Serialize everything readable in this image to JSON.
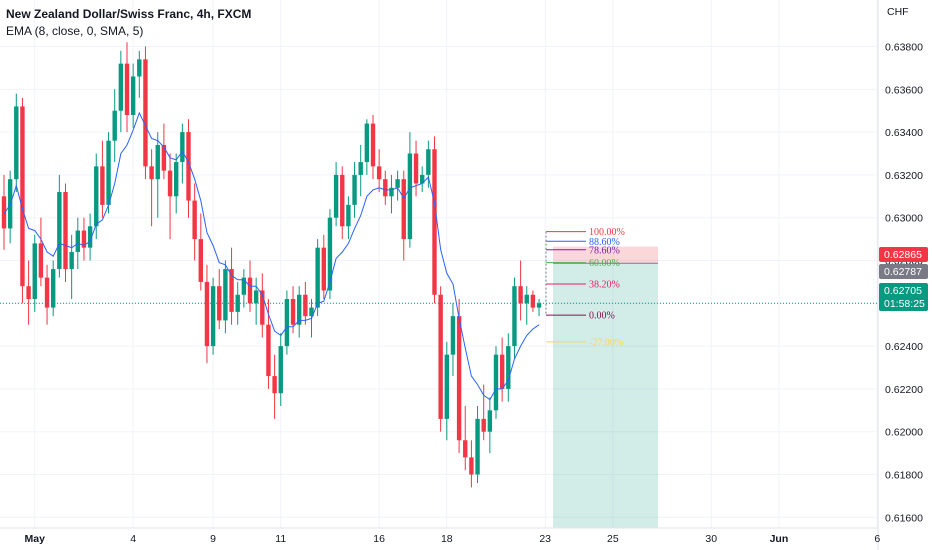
{
  "header": {
    "title": "New Zealand Dollar/Swiss Franc, 4h, FXCM",
    "study": "EMA (8, close, 0, SMA, 5)"
  },
  "currency_label": "CHF",
  "price_tags": [
    {
      "value": "0.62865",
      "color": "#f23645"
    },
    {
      "value": "0.62787",
      "color": "#787b86"
    },
    {
      "value": "0.62705",
      "sub": "01:58:25",
      "color": "#089981"
    }
  ],
  "chart_data": {
    "type": "candlestick",
    "symbol": "NZDCHF",
    "interval": "4h",
    "source": "FXCM",
    "ylim": [
      0.6155,
      0.6398
    ],
    "y_ticks": [
      "0.63800",
      "0.63600",
      "0.63400",
      "0.63200",
      "0.63000",
      "0.62800",
      "0.62600",
      "0.62400",
      "0.62200",
      "0.62000",
      "0.61800",
      "0.61600"
    ],
    "x_ticks": [
      {
        "label": "May",
        "bar": 5
      },
      {
        "label": "4",
        "bar": 21
      },
      {
        "label": "9",
        "bar": 34
      },
      {
        "label": "11",
        "bar": 45
      },
      {
        "label": "16",
        "bar": 61
      },
      {
        "label": "18",
        "bar": 72
      },
      {
        "label": "23",
        "bar": 88
      },
      {
        "label": "25",
        "bar": 99
      },
      {
        "label": "30",
        "bar": 115
      },
      {
        "label": "Jun",
        "bar": 126
      },
      {
        "label": "6",
        "bar": 142
      }
    ],
    "grid": true,
    "colors": {
      "up": "#089981",
      "down": "#f23645",
      "ema": "#2962ff"
    },
    "candles": [
      [
        0.631,
        0.632,
        0.6285,
        0.6295
      ],
      [
        0.6295,
        0.6322,
        0.6288,
        0.6318
      ],
      [
        0.6318,
        0.6358,
        0.6312,
        0.6352
      ],
      [
        0.6352,
        0.6356,
        0.626,
        0.6268
      ],
      [
        0.6268,
        0.628,
        0.625,
        0.6262
      ],
      [
        0.6262,
        0.6292,
        0.6256,
        0.6288
      ],
      [
        0.6288,
        0.63,
        0.6268,
        0.6272
      ],
      [
        0.6272,
        0.6278,
        0.625,
        0.6258
      ],
      [
        0.6258,
        0.628,
        0.6254,
        0.6276
      ],
      [
        0.6276,
        0.632,
        0.6272,
        0.6312
      ],
      [
        0.6312,
        0.6316,
        0.627,
        0.6276
      ],
      [
        0.6276,
        0.6292,
        0.6262,
        0.6284
      ],
      [
        0.6284,
        0.63,
        0.6276,
        0.6294
      ],
      [
        0.6294,
        0.63,
        0.628,
        0.6286
      ],
      [
        0.6286,
        0.6302,
        0.628,
        0.6296
      ],
      [
        0.6296,
        0.633,
        0.629,
        0.6324
      ],
      [
        0.6324,
        0.6336,
        0.63,
        0.6306
      ],
      [
        0.6306,
        0.634,
        0.6302,
        0.6336
      ],
      [
        0.6336,
        0.636,
        0.6326,
        0.635
      ],
      [
        0.635,
        0.6378,
        0.634,
        0.6372
      ],
      [
        0.6372,
        0.6382,
        0.634,
        0.6348
      ],
      [
        0.6348,
        0.6372,
        0.6342,
        0.6366
      ],
      [
        0.6366,
        0.6378,
        0.6356,
        0.6374
      ],
      [
        0.6374,
        0.638,
        0.6318,
        0.6324
      ],
      [
        0.6324,
        0.6332,
        0.6296,
        0.6318
      ],
      [
        0.6318,
        0.634,
        0.63,
        0.6334
      ],
      [
        0.6334,
        0.6344,
        0.6318,
        0.6322
      ],
      [
        0.6322,
        0.633,
        0.629,
        0.631
      ],
      [
        0.631,
        0.633,
        0.6302,
        0.6326
      ],
      [
        0.6326,
        0.6344,
        0.6316,
        0.634
      ],
      [
        0.634,
        0.6346,
        0.63,
        0.6308
      ],
      [
        0.6308,
        0.6316,
        0.628,
        0.629
      ],
      [
        0.629,
        0.6302,
        0.6266,
        0.627
      ],
      [
        0.627,
        0.6278,
        0.6232,
        0.624
      ],
      [
        0.624,
        0.6272,
        0.6236,
        0.6268
      ],
      [
        0.6268,
        0.6276,
        0.6248,
        0.6252
      ],
      [
        0.6252,
        0.628,
        0.6246,
        0.6276
      ],
      [
        0.6276,
        0.6286,
        0.625,
        0.6256
      ],
      [
        0.6256,
        0.627,
        0.625,
        0.6264
      ],
      [
        0.6264,
        0.6276,
        0.6258,
        0.6272
      ],
      [
        0.6272,
        0.628,
        0.6256,
        0.626
      ],
      [
        0.626,
        0.6272,
        0.625,
        0.6266
      ],
      [
        0.6266,
        0.6274,
        0.6244,
        0.625
      ],
      [
        0.625,
        0.6262,
        0.622,
        0.6226
      ],
      [
        0.6226,
        0.6236,
        0.6206,
        0.6218
      ],
      [
        0.6218,
        0.6246,
        0.6212,
        0.624
      ],
      [
        0.624,
        0.6266,
        0.6236,
        0.6262
      ],
      [
        0.6262,
        0.6268,
        0.6246,
        0.625
      ],
      [
        0.625,
        0.6268,
        0.6244,
        0.6264
      ],
      [
        0.6264,
        0.627,
        0.625,
        0.6254
      ],
      [
        0.6254,
        0.6262,
        0.6244,
        0.6258
      ],
      [
        0.6258,
        0.629,
        0.6254,
        0.6286
      ],
      [
        0.6286,
        0.6292,
        0.6262,
        0.6266
      ],
      [
        0.6266,
        0.6304,
        0.6262,
        0.63
      ],
      [
        0.63,
        0.6326,
        0.6296,
        0.632
      ],
      [
        0.632,
        0.6324,
        0.629,
        0.6296
      ],
      [
        0.6296,
        0.631,
        0.629,
        0.6306
      ],
      [
        0.6306,
        0.6326,
        0.63,
        0.632
      ],
      [
        0.632,
        0.6334,
        0.631,
        0.6326
      ],
      [
        0.6326,
        0.6346,
        0.632,
        0.6344
      ],
      [
        0.6344,
        0.6348,
        0.6318,
        0.6324
      ],
      [
        0.6324,
        0.6332,
        0.6312,
        0.6318
      ],
      [
        0.6318,
        0.6322,
        0.6306,
        0.631
      ],
      [
        0.631,
        0.632,
        0.6302,
        0.6314
      ],
      [
        0.6314,
        0.6322,
        0.6308,
        0.6318
      ],
      [
        0.6318,
        0.6322,
        0.628,
        0.629
      ],
      [
        0.629,
        0.634,
        0.6286,
        0.633
      ],
      [
        0.633,
        0.6336,
        0.631,
        0.6316
      ],
      [
        0.6316,
        0.6324,
        0.6312,
        0.632
      ],
      [
        0.632,
        0.6336,
        0.6314,
        0.6332
      ],
      [
        0.6332,
        0.6338,
        0.626,
        0.6264
      ],
      [
        0.6264,
        0.6268,
        0.62,
        0.6206
      ],
      [
        0.6206,
        0.6242,
        0.6196,
        0.6236
      ],
      [
        0.6236,
        0.626,
        0.6226,
        0.6254
      ],
      [
        0.6254,
        0.6262,
        0.619,
        0.6196
      ],
      [
        0.6196,
        0.6212,
        0.6182,
        0.6188
      ],
      [
        0.6188,
        0.6196,
        0.6174,
        0.618
      ],
      [
        0.618,
        0.6212,
        0.6176,
        0.6206
      ],
      [
        0.6206,
        0.6222,
        0.6196,
        0.62
      ],
      [
        0.62,
        0.6216,
        0.619,
        0.621
      ],
      [
        0.621,
        0.624,
        0.6206,
        0.6236
      ],
      [
        0.6236,
        0.6244,
        0.6214,
        0.622
      ],
      [
        0.622,
        0.6246,
        0.6214,
        0.624
      ],
      [
        0.624,
        0.6272,
        0.6234,
        0.6268
      ],
      [
        0.6268,
        0.628,
        0.6252,
        0.626
      ],
      [
        0.626,
        0.6268,
        0.625,
        0.6264
      ],
      [
        0.6264,
        0.6266,
        0.6256,
        0.6258
      ],
      [
        0.6258,
        0.6262,
        0.6254,
        0.626
      ]
    ],
    "ema": [
      0.6302,
      0.6306,
      0.6315,
      0.6304,
      0.6295,
      0.6294,
      0.629,
      0.6284,
      0.6282,
      0.6288,
      0.6287,
      0.6286,
      0.6288,
      0.6287,
      0.6289,
      0.6297,
      0.6299,
      0.6306,
      0.6316,
      0.633,
      0.6334,
      0.6341,
      0.6349,
      0.6343,
      0.6337,
      0.6336,
      0.6333,
      0.6328,
      0.6327,
      0.6331,
      0.6326,
      0.6318,
      0.6308,
      0.6293,
      0.6287,
      0.6279,
      0.6278,
      0.6273,
      0.6271,
      0.6271,
      0.6268,
      0.6268,
      0.6264,
      0.6255,
      0.6247,
      0.6245,
      0.6249,
      0.6249,
      0.6252,
      0.6252,
      0.6253,
      0.626,
      0.6261,
      0.627,
      0.6281,
      0.6284,
      0.6288,
      0.6295,
      0.6301,
      0.631,
      0.6313,
      0.6314,
      0.6313,
      0.6313,
      0.6314,
      0.6309,
      0.6314,
      0.6315,
      0.6316,
      0.6319,
      0.6307,
      0.6285,
      0.6274,
      0.6269,
      0.6253,
      0.6239,
      0.6226,
      0.6222,
      0.6217,
      0.6215,
      0.622,
      0.622,
      0.6224,
      0.6234,
      0.624,
      0.6245,
      0.6248,
      0.625
    ],
    "fib_levels": [
      {
        "label": "100.00%",
        "price": 0.62935,
        "color": "#f23645"
      },
      {
        "label": "88.60%",
        "price": 0.6289,
        "color": "#2962ff"
      },
      {
        "label": "78.60%",
        "price": 0.6285,
        "color": "#7b1fa2"
      },
      {
        "label": "60.00%",
        "price": 0.6279,
        "color": "#4caf50"
      },
      {
        "label": "38.20%",
        "price": 0.6269,
        "color": "#e91e63"
      },
      {
        "label": "0.00%",
        "price": 0.62545,
        "color": "#880e4f"
      },
      {
        "label": "-27.00%",
        "price": 0.6242,
        "color": "#ffd54f"
      }
    ],
    "position": {
      "entry": 0.62787,
      "stop": 0.62865,
      "target": 0.6155
    }
  }
}
